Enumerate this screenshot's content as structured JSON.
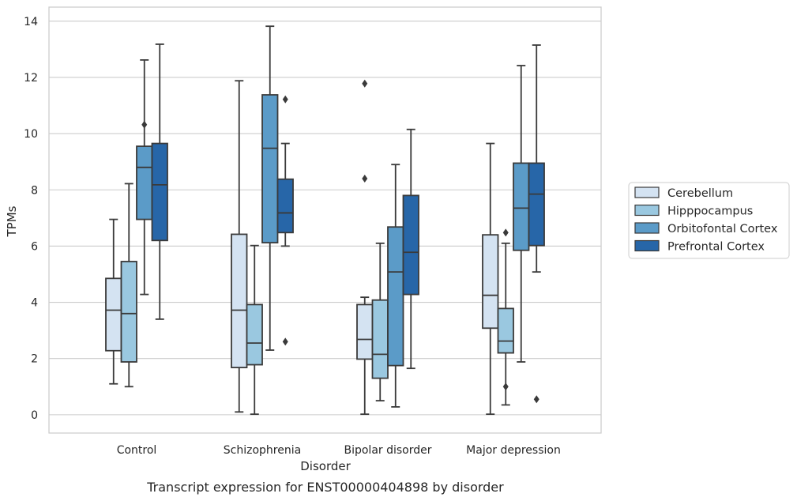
{
  "chart_data": {
    "type": "boxplot",
    "caption": "Transcript expression for ENST00000404898 by disorder",
    "xlabel": "Disorder",
    "ylabel": "TPMs",
    "ylim": [
      -0.65,
      14.5
    ],
    "yticks": [
      0,
      2,
      4,
      6,
      8,
      10,
      12,
      14
    ],
    "grid": true,
    "legend_position": "right",
    "categories": [
      "Control",
      "Schizophrenia",
      "Bipolar disorder",
      "Major depression"
    ],
    "series": [
      {
        "name": "Cerebellum",
        "color": "#d4e3f2",
        "boxes": [
          {
            "whislo": 1.1,
            "q1": 2.28,
            "med": 3.72,
            "q3": 4.85,
            "whishi": 6.95,
            "fliers": []
          },
          {
            "whislo": 0.1,
            "q1": 1.68,
            "med": 3.72,
            "q3": 6.42,
            "whishi": 11.88,
            "fliers": []
          },
          {
            "whislo": 0.02,
            "q1": 1.98,
            "med": 2.68,
            "q3": 3.92,
            "whishi": 4.18,
            "fliers": [
              8.4,
              11.78
            ]
          },
          {
            "whislo": 0.02,
            "q1": 3.08,
            "med": 4.25,
            "q3": 6.4,
            "whishi": 9.65,
            "fliers": []
          }
        ]
      },
      {
        "name": "Hipppocampus",
        "color": "#9ac8e0",
        "boxes": [
          {
            "whislo": 1.0,
            "q1": 1.88,
            "med": 3.6,
            "q3": 5.45,
            "whishi": 8.22,
            "fliers": []
          },
          {
            "whislo": 0.02,
            "q1": 1.78,
            "med": 2.55,
            "q3": 3.92,
            "whishi": 6.02,
            "fliers": []
          },
          {
            "whislo": 0.5,
            "q1": 1.3,
            "med": 2.15,
            "q3": 4.08,
            "whishi": 6.1,
            "fliers": []
          },
          {
            "whislo": 0.35,
            "q1": 2.2,
            "med": 2.62,
            "q3": 3.78,
            "whishi": 6.1,
            "fliers": [
              1.0,
              6.48
            ]
          }
        ]
      },
      {
        "name": "Orbitofontal Cortex",
        "color": "#5b9bc8",
        "boxes": [
          {
            "whislo": 4.28,
            "q1": 6.95,
            "med": 8.8,
            "q3": 9.55,
            "whishi": 12.62,
            "fliers": [
              10.32
            ]
          },
          {
            "whislo": 2.3,
            "q1": 6.12,
            "med": 9.48,
            "q3": 11.38,
            "whishi": 13.82,
            "fliers": []
          },
          {
            "whislo": 0.28,
            "q1": 1.75,
            "med": 5.08,
            "q3": 6.68,
            "whishi": 8.9,
            "fliers": []
          },
          {
            "whislo": 1.88,
            "q1": 5.85,
            "med": 7.35,
            "q3": 8.95,
            "whishi": 12.42,
            "fliers": []
          }
        ]
      },
      {
        "name": "Prefrontal Cortex",
        "color": "#2766a8",
        "boxes": [
          {
            "whislo": 3.4,
            "q1": 6.2,
            "med": 8.18,
            "q3": 9.65,
            "whishi": 13.18,
            "fliers": []
          },
          {
            "whislo": 6.0,
            "q1": 6.48,
            "med": 7.18,
            "q3": 8.38,
            "whishi": 9.65,
            "fliers": [
              2.6,
              11.22
            ]
          },
          {
            "whislo": 1.65,
            "q1": 4.28,
            "med": 5.78,
            "q3": 7.8,
            "whishi": 10.15,
            "fliers": []
          },
          {
            "whislo": 5.08,
            "q1": 6.02,
            "med": 7.85,
            "q3": 8.95,
            "whishi": 13.15,
            "fliers": [
              0.55
            ]
          }
        ]
      }
    ]
  }
}
